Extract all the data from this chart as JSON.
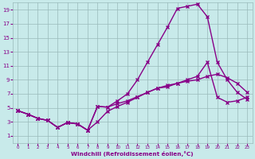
{
  "bg_color": "#c8eaea",
  "line_color": "#880088",
  "grid_color": "#9ababa",
  "xlabel": "Windchill (Refroidissement éolien,°C)",
  "xlabel_color": "#880088",
  "tick_color": "#880088",
  "xlim": [
    -0.5,
    23.5
  ],
  "ylim": [
    0,
    20
  ],
  "xticks": [
    0,
    1,
    2,
    3,
    4,
    5,
    6,
    7,
    8,
    9,
    10,
    11,
    12,
    13,
    14,
    15,
    16,
    17,
    18,
    19,
    20,
    21,
    22,
    23
  ],
  "yticks": [
    1,
    3,
    5,
    7,
    9,
    11,
    13,
    15,
    17,
    19
  ],
  "line1_x": [
    0,
    1,
    2,
    3,
    4,
    5,
    6,
    7,
    8,
    9,
    10,
    11,
    12,
    13,
    14,
    15,
    16,
    17,
    18,
    19,
    20,
    21,
    22,
    23
  ],
  "line1_y": [
    4.6,
    4.1,
    3.5,
    3.2,
    2.2,
    2.9,
    2.7,
    1.8,
    5.2,
    5.1,
    5.6,
    6.0,
    6.6,
    7.2,
    7.8,
    8.2,
    8.5,
    8.8,
    9.0,
    9.5,
    9.8,
    9.3,
    8.5,
    7.2
  ],
  "line2_x": [
    0,
    1,
    2,
    3,
    4,
    5,
    6,
    7,
    8,
    9,
    10,
    11,
    12,
    13,
    14,
    15,
    16,
    17,
    18,
    19,
    20,
    21,
    22,
    23
  ],
  "line2_y": [
    4.6,
    4.1,
    3.5,
    3.2,
    2.2,
    2.9,
    2.7,
    1.8,
    5.2,
    5.1,
    6.0,
    7.0,
    9.0,
    11.5,
    14.0,
    16.5,
    19.2,
    19.5,
    19.8,
    18.0,
    11.5,
    9.0,
    7.2,
    6.2
  ],
  "line3_x": [
    0,
    1,
    2,
    3,
    4,
    5,
    6,
    7,
    8,
    9,
    10,
    11,
    12,
    13,
    14,
    15,
    16,
    17,
    18,
    19,
    20,
    21,
    22,
    23
  ],
  "line3_y": [
    4.6,
    4.1,
    3.5,
    3.2,
    2.2,
    2.9,
    2.7,
    1.8,
    3.0,
    4.5,
    5.2,
    5.8,
    6.5,
    7.2,
    7.8,
    8.0,
    8.5,
    9.0,
    9.5,
    11.5,
    6.5,
    5.8,
    6.0,
    6.5
  ],
  "marker": "x",
  "markersize": 3,
  "linewidth": 1.0
}
